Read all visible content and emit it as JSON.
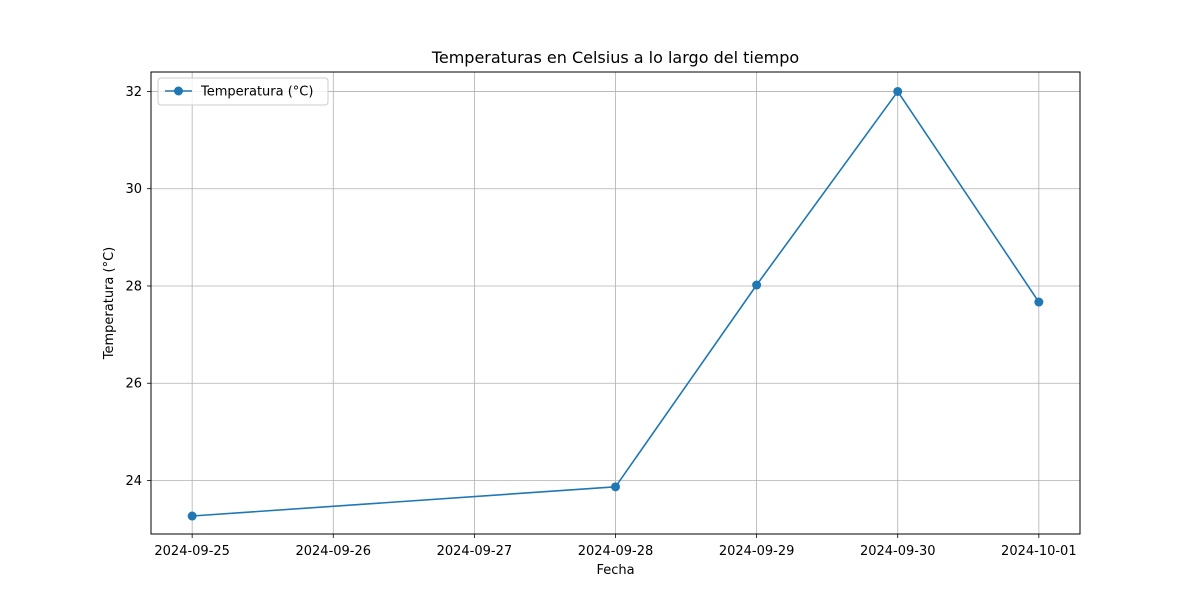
{
  "chart_data": {
    "type": "line",
    "title": "Temperaturas en Celsius a lo largo del tiempo",
    "xlabel": "Fecha",
    "ylabel": "Temperatura (°C)",
    "x_ticks": [
      "2024-09-25",
      "2024-09-26",
      "2024-09-27",
      "2024-09-28",
      "2024-09-29",
      "2024-09-30",
      "2024-10-01"
    ],
    "y_ticks": [
      24,
      26,
      28,
      30,
      32
    ],
    "xlim": [
      "2024-09-24T17:00",
      "2024-10-01T07:00"
    ],
    "ylim": [
      22.9,
      32.4
    ],
    "grid": true,
    "legend_position": "top-left",
    "series": [
      {
        "name": "Temperatura (°C)",
        "color": "#1f77b4",
        "marker": "circle",
        "points": [
          {
            "x": "2024-09-25",
            "y": 23.27
          },
          {
            "x": "2024-09-28",
            "y": 23.87
          },
          {
            "x": "2024-09-29",
            "y": 28.02
          },
          {
            "x": "2024-09-30",
            "y": 32.0
          },
          {
            "x": "2024-10-01",
            "y": 27.67
          }
        ]
      }
    ]
  }
}
